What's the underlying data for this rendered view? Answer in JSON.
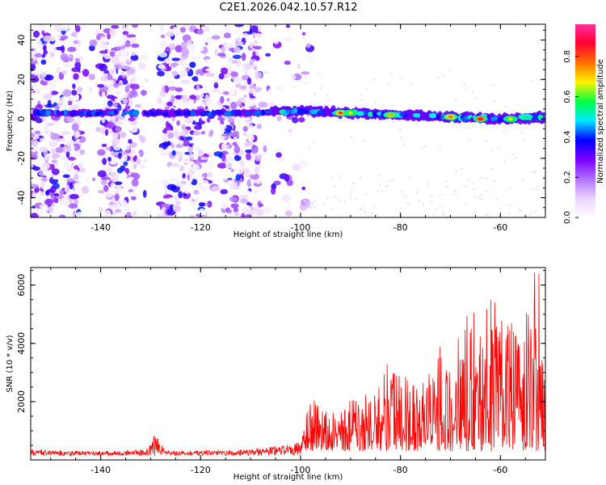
{
  "title": "C2E1.2026.042.10.57.R12",
  "chart_data": [
    {
      "type": "heatmap",
      "name": "spectrogram",
      "xlabel": "Height of straight line (km)",
      "ylabel": "Frequency (Hz)",
      "xlim": [
        -154,
        -51
      ],
      "ylim": [
        -50,
        48
      ],
      "xticks": [
        -140,
        -120,
        -100,
        -80,
        -60
      ],
      "yticks": [
        -40,
        -20,
        0,
        20,
        40
      ],
      "colorbar": {
        "label": "Normalized spectral amplitude",
        "range": [
          0,
          0.96
        ],
        "ticks": [
          0.0,
          0.2,
          0.4,
          0.6,
          0.8
        ],
        "colors": [
          "#ffffff",
          "#ead2ff",
          "#b070ff",
          "#7a00ff",
          "#0000ff",
          "#00e8ff",
          "#00ff40",
          "#fff200",
          "#ff7000",
          "#ff0030",
          "#ff2fa0"
        ]
      },
      "ridge": {
        "description_points": [
          [
            -153,
            3
          ],
          [
            -140,
            3
          ],
          [
            -130,
            3
          ],
          [
            -110,
            3
          ],
          [
            -100,
            4
          ],
          [
            -90,
            3
          ],
          [
            -80,
            2
          ],
          [
            -70,
            1
          ],
          [
            -60,
            0
          ],
          [
            -51,
            1
          ]
        ],
        "peaks": [
          [
            -92,
            3,
            0.85
          ],
          [
            -90,
            3,
            0.7
          ],
          [
            -82,
            2,
            0.75
          ],
          [
            -70,
            1,
            0.8
          ],
          [
            -64,
            0,
            0.92
          ],
          [
            -58,
            0,
            0.7
          ],
          [
            -55,
            1,
            0.6
          ]
        ]
      },
      "noise_bands": [
        [
          -154,
          -144
        ],
        [
          -140,
          -133
        ],
        [
          -128,
          -118
        ],
        [
          -116,
          -108
        ]
      ]
    },
    {
      "type": "line",
      "name": "snr",
      "xlabel": "Height of straight line (km)",
      "ylabel": "SNR (10 * v/v)",
      "xlim": [
        -154,
        -51
      ],
      "ylim": [
        0,
        6600
      ],
      "xticks": [
        -140,
        -120,
        -100,
        -80,
        -60
      ],
      "yticks": [
        2000,
        4000,
        6000
      ],
      "color": "#ff0000",
      "envelope": [
        [
          -154,
          350
        ],
        [
          -140,
          300
        ],
        [
          -131,
          350
        ],
        [
          -129,
          900
        ],
        [
          -127,
          300
        ],
        [
          -110,
          350
        ],
        [
          -100,
          600
        ],
        [
          -98,
          2300
        ],
        [
          -95,
          1800
        ],
        [
          -90,
          2300
        ],
        [
          -85,
          2300
        ],
        [
          -82,
          3600
        ],
        [
          -78,
          2800
        ],
        [
          -75,
          3000
        ],
        [
          -72,
          4000
        ],
        [
          -70,
          3500
        ],
        [
          -67,
          5200
        ],
        [
          -65,
          5600
        ],
        [
          -62,
          5800
        ],
        [
          -59,
          4600
        ],
        [
          -57,
          4800
        ],
        [
          -54,
          6300
        ],
        [
          -53,
          6600
        ],
        [
          -52,
          6600
        ],
        [
          -51,
          1800
        ]
      ]
    }
  ]
}
